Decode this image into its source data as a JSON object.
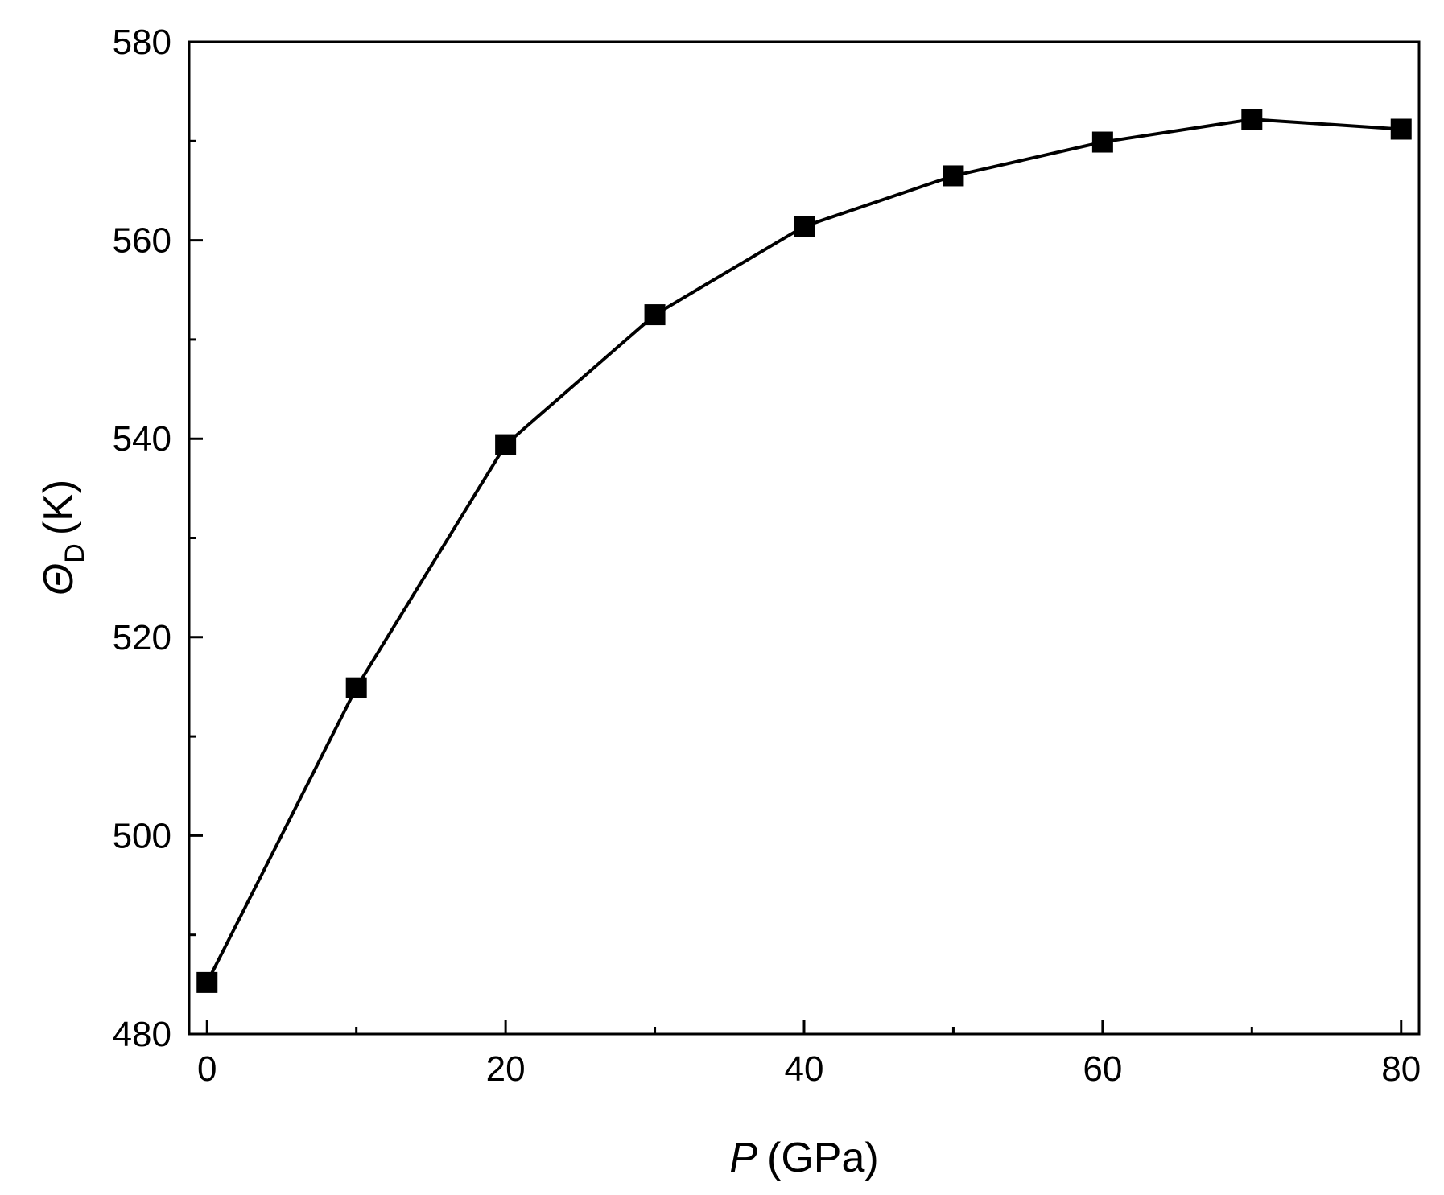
{
  "chart_data": {
    "type": "line",
    "markers": "filled-square",
    "line_color": "#000000",
    "marker_color": "#000000",
    "xlabel": {
      "symbol": "P",
      "unit": "(GPa)"
    },
    "ylabel": {
      "symbol": "Θ",
      "subscript": "D",
      "unit": "(K)"
    },
    "xlim": [
      -1.2,
      81.2
    ],
    "ylim": [
      480,
      580
    ],
    "xticks": [
      0,
      20,
      40,
      60,
      80
    ],
    "xticks_minor": [
      10,
      30,
      50,
      70
    ],
    "yticks": [
      480,
      500,
      520,
      540,
      560,
      580
    ],
    "yticks_minor": [
      490,
      510,
      530,
      550,
      570
    ],
    "grid": false,
    "series": [
      {
        "x": [
          0,
          10,
          20,
          30,
          40,
          50,
          60,
          70,
          80
        ],
        "y": [
          485.2,
          514.9,
          539.4,
          552.5,
          561.4,
          566.5,
          569.9,
          572.2,
          571.2
        ]
      }
    ]
  }
}
